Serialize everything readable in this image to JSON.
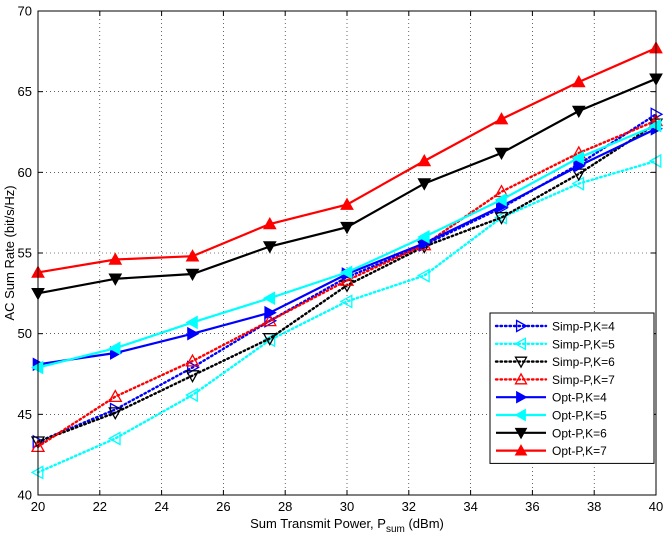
{
  "chart_data": {
    "type": "line",
    "xlabel": "Sum Transmit Power, P",
    "xlabel_sub": "sum",
    "xlabel_unit": " (dBm)",
    "ylabel": "AC Sum Rate (bit/s/Hz)",
    "xlim": [
      20,
      40
    ],
    "ylim": [
      40,
      70
    ],
    "xticks": [
      20,
      22,
      24,
      26,
      28,
      30,
      32,
      34,
      36,
      38,
      40
    ],
    "yticks": [
      40,
      45,
      50,
      55,
      60,
      65,
      70
    ],
    "grid": true,
    "legend_position": "lower-right",
    "x": [
      20,
      22.5,
      25,
      27.5,
      30,
      32.5,
      35,
      37.5,
      40
    ],
    "series": [
      {
        "name": "Simp-P,K=4",
        "color": "#0000ff",
        "style": "dotted",
        "marker": "triangle-right",
        "values": [
          43.3,
          45.3,
          47.9,
          50.8,
          53.5,
          55.5,
          57.8,
          60.5,
          63.6
        ]
      },
      {
        "name": "Simp-P,K=5",
        "color": "#00ffff",
        "style": "dotted",
        "marker": "triangle-left",
        "values": [
          41.4,
          43.5,
          46.2,
          49.6,
          52.0,
          53.6,
          57.2,
          59.3,
          60.7
        ]
      },
      {
        "name": "Simp-P,K=6",
        "color": "#000000",
        "style": "dotted",
        "marker": "triangle-down",
        "values": [
          43.3,
          45.1,
          47.4,
          49.7,
          53.0,
          55.4,
          57.2,
          59.9,
          63.0
        ]
      },
      {
        "name": "Simp-P,K=7",
        "color": "#ff0000",
        "style": "dotted",
        "marker": "triangle-up",
        "values": [
          43.0,
          46.1,
          48.3,
          50.8,
          53.3,
          55.5,
          58.8,
          61.2,
          63.2
        ]
      },
      {
        "name": "Opt-P,K=4",
        "color": "#0000ff",
        "style": "solid",
        "marker": "triangle-right",
        "values": [
          48.1,
          48.8,
          50.0,
          51.3,
          53.7,
          55.6,
          57.9,
          60.4,
          62.7
        ]
      },
      {
        "name": "Opt-P,K=5",
        "color": "#00ffff",
        "style": "solid",
        "marker": "triangle-left",
        "values": [
          47.9,
          49.1,
          50.7,
          52.2,
          53.8,
          56.0,
          58.3,
          60.9,
          62.9
        ]
      },
      {
        "name": "Opt-P,K=6",
        "color": "#000000",
        "style": "solid",
        "marker": "triangle-down",
        "values": [
          52.5,
          53.4,
          53.7,
          55.4,
          56.6,
          59.3,
          61.2,
          63.8,
          65.8
        ]
      },
      {
        "name": "Opt-P,K=7",
        "color": "#ff0000",
        "style": "solid",
        "marker": "triangle-up",
        "values": [
          53.8,
          54.6,
          54.8,
          56.8,
          58.0,
          60.7,
          63.3,
          65.6,
          67.7
        ]
      }
    ]
  }
}
